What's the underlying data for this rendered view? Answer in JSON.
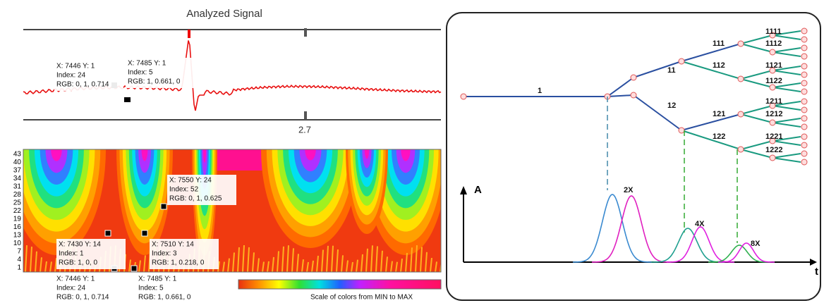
{
  "signal_panel": {
    "title": "Analyzed Signal",
    "value": "2.7",
    "tooltips": [
      {
        "lines": [
          "X: 7446 Y: 1",
          "Index: 24",
          "RGB: 0, 1, 0.714"
        ]
      },
      {
        "lines": [
          "X: 7485 Y: 1",
          "Index: 5",
          "RGB: 1, 0.661, 0"
        ]
      }
    ]
  },
  "scalogram": {
    "y_labels": [
      "43",
      "40",
      "37",
      "34",
      "31",
      "28",
      "25",
      "22",
      "19",
      "16",
      "13",
      "10",
      "7",
      "4",
      "1"
    ],
    "tooltips": [
      {
        "lines": [
          "X: 7550 Y: 24",
          "Index: 52",
          "RGB: 0, 1, 0.625"
        ]
      },
      {
        "lines": [
          "X: 7430 Y: 14",
          "Index: 1",
          "RGB: 1, 0, 0"
        ]
      },
      {
        "lines": [
          "X: 7510 Y: 14",
          "Index: 3",
          "RGB: 1, 0.218, 0"
        ]
      },
      {
        "lines": [
          "X: 7446 Y: 1",
          "Index: 24",
          "RGB: 0, 1, 0.714"
        ]
      },
      {
        "lines": [
          "X: 7485 Y: 1",
          "Index: 5",
          "RGB: 1, 0.661, 0"
        ]
      }
    ],
    "scale_label": "Scale of colors from MIN to MAX"
  },
  "tree": {
    "labels": [
      "1",
      "11",
      "12",
      "111",
      "112",
      "121",
      "122",
      "1111",
      "1112",
      "1121",
      "1122",
      "1211",
      "1212",
      "1221",
      "1222"
    ]
  },
  "plot": {
    "y_label": "A",
    "x_label": "t",
    "peaks": [
      "2X",
      "4X",
      "8X"
    ]
  }
}
